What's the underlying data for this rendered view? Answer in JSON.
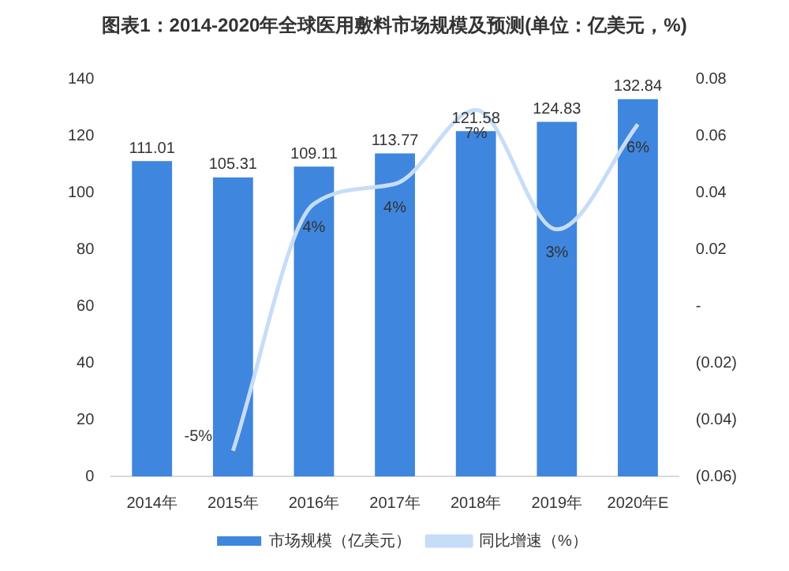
{
  "chart_data": {
    "type": "bar",
    "title": "图表1：2014-2020年全球医用敷料市场规模及预测(单位：亿美元，%)",
    "categories": [
      "2014年",
      "2015年",
      "2016年",
      "2017年",
      "2018年",
      "2019年",
      "2020年E"
    ],
    "series": [
      {
        "name": "市场规模（亿美元）",
        "color": "#3f86de",
        "values": [
          111.01,
          105.31,
          109.11,
          113.77,
          121.58,
          124.83,
          132.84
        ],
        "value_labels": [
          "111.01",
          "105.31",
          "109.11",
          "113.77",
          "121.58",
          "124.83",
          "132.84"
        ]
      },
      {
        "name": "同比增速（%）",
        "type": "line",
        "axis": "y2",
        "color": "#c6ddf7",
        "values": [
          null,
          -0.051,
          0.036,
          0.043,
          0.069,
          0.027,
          0.064
        ],
        "value_labels": [
          null,
          "-5%",
          "4%",
          "4%",
          "7%",
          "3%",
          "6%"
        ]
      }
    ],
    "ylim": [
      0,
      140
    ],
    "yticks": [
      0,
      20,
      40,
      60,
      80,
      100,
      120,
      140
    ],
    "y2lim": [
      -0.06,
      0.08
    ],
    "y2ticks": [
      {
        "value": -0.06,
        "label": "(0.06)"
      },
      {
        "value": -0.04,
        "label": "(0.04)"
      },
      {
        "value": -0.02,
        "label": "(0.02)"
      },
      {
        "value": 0,
        "label": "-"
      },
      {
        "value": 0.02,
        "label": "0.02"
      },
      {
        "value": 0.04,
        "label": "0.04"
      },
      {
        "value": 0.06,
        "label": "0.06"
      },
      {
        "value": 0.08,
        "label": "0.08"
      }
    ],
    "grid": false,
    "legend": "bottom"
  }
}
